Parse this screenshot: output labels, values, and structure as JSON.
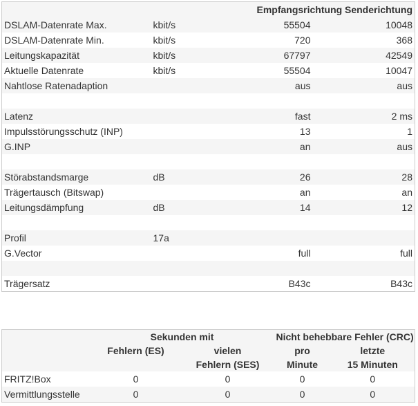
{
  "line_table": {
    "headers": {
      "downstream": "Empfangsrichtung",
      "upstream": "Senderichtung"
    },
    "rows": [
      {
        "label": "DSLAM-Datenrate Max.",
        "unit": "kbit/s",
        "down": "55504",
        "up": "10048"
      },
      {
        "label": "DSLAM-Datenrate Min.",
        "unit": "kbit/s",
        "down": "720",
        "up": "368"
      },
      {
        "label": "Leitungskapazität",
        "unit": "kbit/s",
        "down": "67797",
        "up": "42549"
      },
      {
        "label": "Aktuelle Datenrate",
        "unit": "kbit/s",
        "down": "55504",
        "up": "10047"
      },
      {
        "label": "Nahtlose Ratenadaption",
        "unit": "",
        "down": "aus",
        "up": "aus"
      },
      {
        "label": "",
        "unit": "",
        "down": "",
        "up": ""
      },
      {
        "label": "Latenz",
        "unit": "",
        "down": "fast",
        "up": "2 ms"
      },
      {
        "label": "Impulsstörungsschutz (INP)",
        "unit": "",
        "down": "13",
        "up": "1"
      },
      {
        "label": "G.INP",
        "unit": "",
        "down": "an",
        "up": "aus"
      },
      {
        "label": "",
        "unit": "",
        "down": "",
        "up": ""
      },
      {
        "label": "Störabstandsmarge",
        "unit": "dB",
        "down": "26",
        "up": "28"
      },
      {
        "label": "Trägertausch (Bitswap)",
        "unit": "",
        "down": "an",
        "up": "an"
      },
      {
        "label": "Leitungsdämpfung",
        "unit": "dB",
        "down": "14",
        "up": "12"
      },
      {
        "label": "",
        "unit": "",
        "down": "",
        "up": ""
      },
      {
        "label": "Profil",
        "unit": "17a",
        "down": "",
        "up": ""
      },
      {
        "label": "G.Vector",
        "unit": "",
        "down": "full",
        "up": "full"
      },
      {
        "label": "",
        "unit": "",
        "down": "",
        "up": ""
      },
      {
        "label": "Trägersatz",
        "unit": "",
        "down": "B43c",
        "up": "B43c"
      }
    ]
  },
  "error_table": {
    "group_seconds": "Sekunden mit",
    "group_crc": "Nicht behebbare Fehler (CRC)",
    "col_es": "Fehlern (ES)",
    "col_ses_1": "vielen",
    "col_ses_2": "Fehlern (SES)",
    "col_min_1": "pro",
    "col_min_2": "Minute",
    "col_15_1": "letzte",
    "col_15_2": "15 Minuten",
    "rows": [
      {
        "label": "FRITZ!Box",
        "es": "0",
        "ses": "0",
        "per_min": "0",
        "last15": "0"
      },
      {
        "label": "Vermittlungsstelle",
        "es": "0",
        "ses": "0",
        "per_min": "0",
        "last15": "0"
      }
    ]
  }
}
